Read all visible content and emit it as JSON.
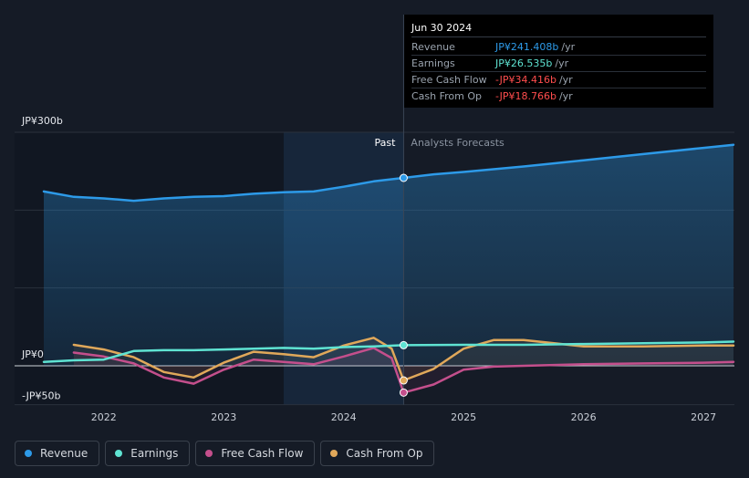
{
  "tooltip": {
    "date": "Jun 30 2024",
    "rows": [
      {
        "label": "Revenue",
        "value": "JP¥241.408b",
        "unit": "/yr",
        "color": "#2d9ae8"
      },
      {
        "label": "Earnings",
        "value": "JP¥26.535b",
        "unit": "/yr",
        "color": "#5fe3d2"
      },
      {
        "label": "Free Cash Flow",
        "value": "-JP¥34.416b",
        "unit": "/yr",
        "color": "#ff4d4d"
      },
      {
        "label": "Cash From Op",
        "value": "-JP¥18.766b",
        "unit": "/yr",
        "color": "#ff4d4d"
      }
    ]
  },
  "legend": [
    {
      "label": "Revenue",
      "color": "#2d9ae8"
    },
    {
      "label": "Earnings",
      "color": "#5fe3d2"
    },
    {
      "label": "Free Cash Flow",
      "color": "#c44f8c"
    },
    {
      "label": "Cash From Op",
      "color": "#e0a85a"
    }
  ],
  "chart_data": {
    "type": "line",
    "y_axis_labels": [
      "JP¥300b",
      "JP¥0",
      "-JP¥50b"
    ],
    "ylim": [
      -50,
      300
    ],
    "xlim": [
      2021.5,
      2027.25
    ],
    "x_ticks": [
      "2022",
      "2023",
      "2024",
      "2025",
      "2026",
      "2027"
    ],
    "x_tick_values": [
      2022,
      2023,
      2024,
      2025,
      2026,
      2027
    ],
    "past_label": "Past",
    "forecast_label": "Analysts Forecasts",
    "divider_x": 2024.5,
    "highlight_start_x": 2023.5,
    "grid": true,
    "series": [
      {
        "name": "Revenue",
        "color": "#2d9ae8",
        "points": [
          [
            2021.5,
            224
          ],
          [
            2021.75,
            217
          ],
          [
            2022.0,
            215
          ],
          [
            2022.25,
            212
          ],
          [
            2022.5,
            215
          ],
          [
            2022.75,
            217
          ],
          [
            2023.0,
            218
          ],
          [
            2023.25,
            221
          ],
          [
            2023.5,
            223
          ],
          [
            2023.75,
            224
          ],
          [
            2024.0,
            230
          ],
          [
            2024.25,
            237
          ],
          [
            2024.5,
            241.4
          ],
          [
            2024.75,
            246
          ],
          [
            2025.0,
            249
          ],
          [
            2025.5,
            256
          ],
          [
            2026.0,
            264
          ],
          [
            2026.5,
            272
          ],
          [
            2027.0,
            280
          ],
          [
            2027.25,
            284
          ]
        ]
      },
      {
        "name": "Earnings",
        "color": "#5fe3d2",
        "points": [
          [
            2021.5,
            5
          ],
          [
            2021.75,
            7
          ],
          [
            2022.0,
            8
          ],
          [
            2022.25,
            19
          ],
          [
            2022.5,
            20
          ],
          [
            2022.75,
            20
          ],
          [
            2023.0,
            21
          ],
          [
            2023.25,
            22
          ],
          [
            2023.5,
            23
          ],
          [
            2023.75,
            22
          ],
          [
            2024.0,
            24
          ],
          [
            2024.25,
            25
          ],
          [
            2024.5,
            26.5
          ],
          [
            2025.0,
            27
          ],
          [
            2025.5,
            27
          ],
          [
            2026.0,
            28
          ],
          [
            2026.5,
            29
          ],
          [
            2027.0,
            30
          ],
          [
            2027.25,
            31
          ]
        ]
      },
      {
        "name": "Free Cash Flow",
        "color": "#c44f8c",
        "points": [
          [
            2021.75,
            17
          ],
          [
            2022.0,
            12
          ],
          [
            2022.25,
            3
          ],
          [
            2022.5,
            -15
          ],
          [
            2022.75,
            -23
          ],
          [
            2023.0,
            -5
          ],
          [
            2023.25,
            8
          ],
          [
            2023.5,
            5
          ],
          [
            2023.75,
            2
          ],
          [
            2024.0,
            12
          ],
          [
            2024.25,
            23
          ],
          [
            2024.4,
            10
          ],
          [
            2024.5,
            -34.4
          ],
          [
            2024.75,
            -24
          ],
          [
            2025.0,
            -5
          ],
          [
            2025.25,
            -1
          ],
          [
            2025.5,
            0
          ],
          [
            2026.0,
            2
          ],
          [
            2026.5,
            3
          ],
          [
            2027.0,
            4
          ],
          [
            2027.25,
            5
          ]
        ]
      },
      {
        "name": "Cash From Op",
        "color": "#e0a85a",
        "points": [
          [
            2021.75,
            27
          ],
          [
            2022.0,
            21
          ],
          [
            2022.25,
            11
          ],
          [
            2022.5,
            -8
          ],
          [
            2022.75,
            -15
          ],
          [
            2023.0,
            4
          ],
          [
            2023.25,
            18
          ],
          [
            2023.5,
            15
          ],
          [
            2023.75,
            11
          ],
          [
            2024.0,
            26
          ],
          [
            2024.25,
            36
          ],
          [
            2024.4,
            22
          ],
          [
            2024.5,
            -18.8
          ],
          [
            2024.75,
            -4
          ],
          [
            2025.0,
            22
          ],
          [
            2025.25,
            33
          ],
          [
            2025.5,
            33
          ],
          [
            2026.0,
            25
          ],
          [
            2026.5,
            25
          ],
          [
            2027.0,
            26
          ],
          [
            2027.25,
            26
          ]
        ]
      }
    ]
  }
}
